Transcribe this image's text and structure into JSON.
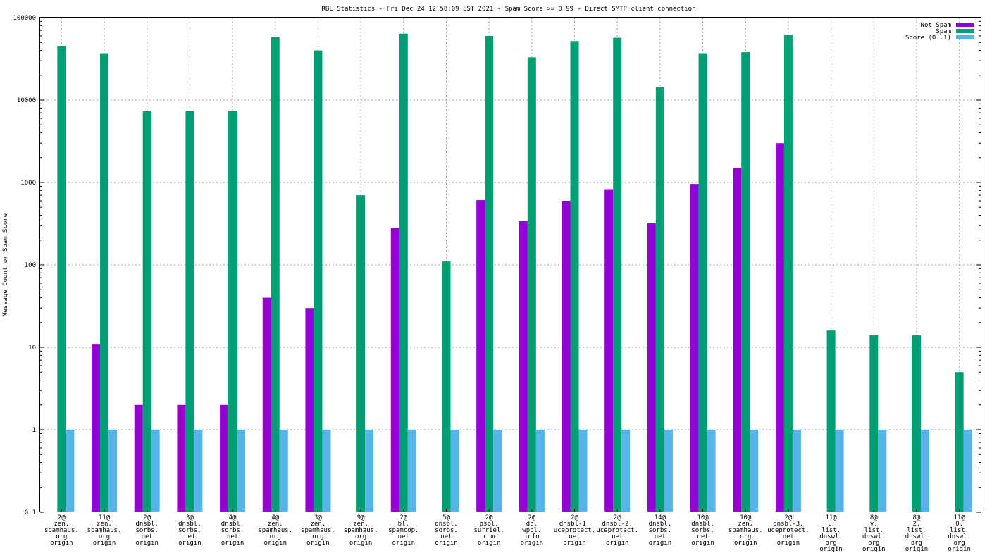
{
  "chart_data": {
    "type": "bar",
    "title": "RBL Statistics - Fri Dec 24 12:58:09 EST 2021 - Spam Score >= 0.99 - Direct SMTP client connection",
    "ylabel": "Message Count or Spam Score",
    "xlabel": "",
    "yscale": "log",
    "ylim": [
      0.1,
      100000
    ],
    "yticks": [
      "0.1",
      "1",
      "10",
      "100",
      "1000",
      "10000",
      "100000"
    ],
    "grid": true,
    "legend_position": "top-right",
    "categories": [
      [
        "2@",
        "zen.",
        "spamhaus.",
        "org",
        "origin"
      ],
      [
        "11@",
        "zen.",
        "spamhaus.",
        "org",
        "origin"
      ],
      [
        "2@",
        "dnsbl.",
        "sorbs.",
        "net",
        "origin"
      ],
      [
        "3@",
        "dnsbl.",
        "sorbs.",
        "net",
        "origin"
      ],
      [
        "4@",
        "dnsbl.",
        "sorbs.",
        "net",
        "origin"
      ],
      [
        "4@",
        "zen.",
        "spamhaus.",
        "org",
        "origin"
      ],
      [
        "3@",
        "zen.",
        "spamhaus.",
        "org",
        "origin"
      ],
      [
        "9@",
        "zen.",
        "spamhaus.",
        "org",
        "origin"
      ],
      [
        "2@",
        "bl.",
        "spamcop.",
        "net",
        "origin"
      ],
      [
        "5@",
        "dnsbl.",
        "sorbs.",
        "net",
        "origin"
      ],
      [
        "2@",
        "psbl.",
        "surriel.",
        "com",
        "origin"
      ],
      [
        "2@",
        "db.",
        "wpbl.",
        "info",
        "origin"
      ],
      [
        "2@",
        "dnsbl-1.",
        "uceprotect.",
        "net",
        "origin"
      ],
      [
        "2@",
        "dnsbl-2.",
        "uceprotect.",
        "net",
        "origin"
      ],
      [
        "14@",
        "dnsbl.",
        "sorbs.",
        "net",
        "origin"
      ],
      [
        "10@",
        "dnsbl.",
        "sorbs.",
        "net",
        "origin"
      ],
      [
        "10@",
        "zen.",
        "spamhaus.",
        "org",
        "origin"
      ],
      [
        "2@",
        "dnsbl-3.",
        "uceprotect.",
        "net",
        "origin"
      ],
      [
        "11@",
        "l.",
        "list.",
        "dnswl.",
        "org",
        "origin"
      ],
      [
        "8@",
        "v.",
        "list.",
        "dnswl.",
        "org",
        "origin"
      ],
      [
        "8@",
        "2.",
        "list.",
        "dnswl.",
        "org",
        "origin"
      ],
      [
        "11@",
        "0.",
        "list.",
        "dnswl.",
        "org",
        "origin"
      ]
    ],
    "series": [
      {
        "name": "Not Spam",
        "color": "#9400d3",
        "values": [
          null,
          11,
          2,
          2,
          2,
          40,
          30,
          null,
          280,
          null,
          610,
          340,
          600,
          830,
          320,
          960,
          1500,
          3000,
          null,
          null,
          null,
          null
        ]
      },
      {
        "name": "Spam",
        "color": "#009e73",
        "values": [
          45000,
          37000,
          7300,
          7300,
          7300,
          58000,
          40000,
          700,
          64000,
          110,
          60000,
          33000,
          52000,
          57000,
          14500,
          37000,
          38000,
          62000,
          16,
          14,
          14,
          5
        ]
      },
      {
        "name": "Score (0..1)",
        "color": "#56b4e9",
        "values": [
          1,
          1,
          1,
          1,
          1,
          1,
          1,
          1,
          1,
          1,
          1,
          1,
          1,
          1,
          1,
          1,
          1,
          1,
          1,
          1,
          1,
          1
        ]
      }
    ]
  }
}
